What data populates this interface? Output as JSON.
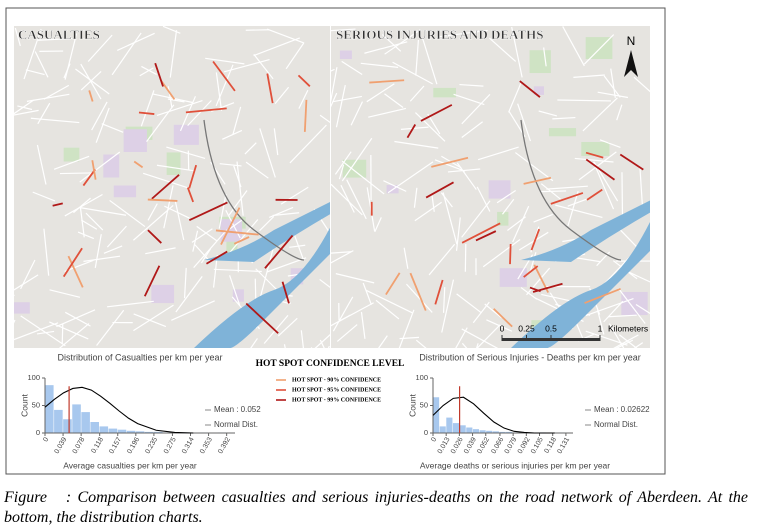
{
  "maps": [
    {
      "title": "CASUALTIES"
    },
    {
      "title": "SERIOUS INJURIES AND DEATHS"
    }
  ],
  "north": "N",
  "scale": {
    "ticks": [
      0,
      0.25,
      0.5,
      1
    ],
    "unit": "Kilometers"
  },
  "legend": {
    "title": "HOT SPOT CONFIDENCE LEVEL",
    "items": [
      {
        "label": "HOT SPOT - 90% CONFIDENCE",
        "color": "#f0a070"
      },
      {
        "label": "HOT SPOT - 95% CONFIDENCE",
        "color": "#e0503a"
      },
      {
        "label": "HOT SPOT - 99% CONFIDENCE",
        "color": "#b01818"
      }
    ]
  },
  "caption": {
    "label": "Figure",
    "text": ": Comparison between casualties and serious injuries-deaths on the road network of Aberdeen. At the bottom, the distribution charts."
  },
  "chart_data": [
    {
      "type": "histogram",
      "title": "Distribution of Casualties per km per year",
      "x_label": "Average casualties per km per year",
      "y_label": "Count",
      "bins": [
        0,
        0.0196,
        0.0392,
        0.0588,
        0.0784,
        0.098,
        0.1176,
        0.1372,
        0.1568,
        0.1764,
        0.196,
        0.2156,
        0.2352,
        0.2548,
        0.2744,
        0.294,
        0.3136,
        0.3332,
        0.3528,
        0.3724,
        0.392
      ],
      "counts": [
        87,
        42,
        25,
        52,
        38,
        20,
        12,
        8,
        6,
        4,
        3,
        2,
        2,
        1,
        1,
        1,
        0,
        1,
        0,
        1
      ],
      "color": "#a8c8ee",
      "mean": {
        "value": 0.052,
        "label": "Mean : 0.052",
        "color": "#c0392b"
      },
      "curve": {
        "name": "Normal Dist.",
        "color": "#000000",
        "x": [
          0,
          0.02,
          0.04,
          0.06,
          0.08,
          0.1,
          0.12,
          0.14,
          0.16,
          0.18,
          0.2,
          0.24,
          0.28,
          0.32
        ],
        "values": [
          47,
          61,
          73,
          81,
          83,
          78,
          67,
          54,
          40,
          27,
          17,
          5,
          1,
          0
        ]
      },
      "xlim": [
        0,
        0.41
      ],
      "xticks": [
        0,
        0.039,
        0.078,
        0.118,
        0.157,
        0.196,
        0.235,
        0.275,
        0.314,
        0.353,
        0.392
      ],
      "ylim": [
        0,
        100
      ],
      "yticks": [
        0,
        50,
        100
      ]
    },
    {
      "type": "histogram",
      "title": "Distribution of Serious Injuries - Deaths per km per year",
      "x_label": "Average deaths or serious injuries per km per year",
      "y_label": "Count",
      "bins": [
        0,
        0.00655,
        0.0131,
        0.01965,
        0.0262,
        0.03275,
        0.0393,
        0.04585,
        0.0524,
        0.05895,
        0.0655,
        0.07205,
        0.0786,
        0.08515,
        0.0917,
        0.09825,
        0.1048,
        0.11135,
        0.1179,
        0.12445,
        0.131
      ],
      "counts": [
        65,
        12,
        28,
        18,
        14,
        10,
        7,
        5,
        4,
        3,
        2,
        2,
        1,
        1,
        1,
        0,
        1,
        0,
        0,
        1
      ],
      "color": "#a8c8ee",
      "mean": {
        "value": 0.02622,
        "label": "Mean : 0.02622",
        "color": "#c0392b"
      },
      "curve": {
        "name": "Normal Dist.",
        "color": "#000000",
        "x": [
          0,
          0.01,
          0.02,
          0.03,
          0.04,
          0.05,
          0.06,
          0.07,
          0.08,
          0.09,
          0.1,
          0.12
        ],
        "values": [
          32,
          50,
          63,
          65,
          53,
          36,
          20,
          9,
          3,
          1,
          0,
          0
        ]
      },
      "xlim": [
        0,
        0.138
      ],
      "xticks": [
        0,
        0.013,
        0.026,
        0.039,
        0.052,
        0.066,
        0.079,
        0.092,
        0.105,
        0.118,
        0.131
      ],
      "ylim": [
        0,
        100
      ],
      "yticks": [
        0,
        50,
        100
      ]
    }
  ]
}
